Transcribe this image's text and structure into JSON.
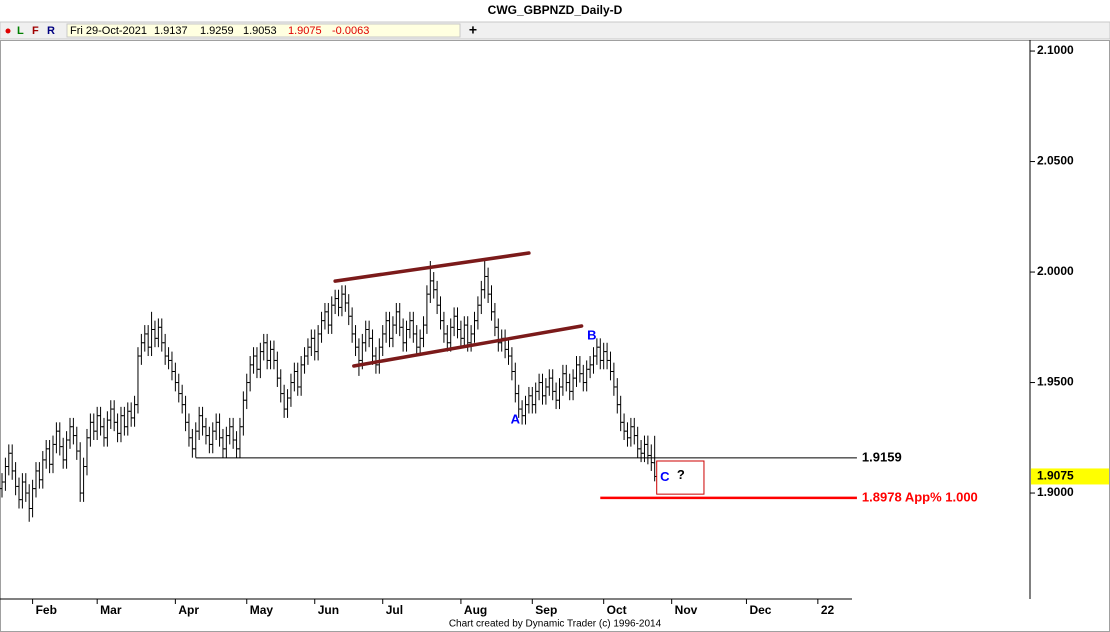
{
  "chart_data": {
    "type": "ohlc",
    "title": "CWG_GBPNZD_Daily-D",
    "toolbar": [
      "L",
      "F",
      "R"
    ],
    "header": {
      "date": "Fri 29-Oct-2021",
      "open": 1.9137,
      "high": 1.9259,
      "low": 1.9053,
      "close": 1.9075,
      "change": -0.0063
    },
    "footer": "Chart created by Dynamic Trader  (c)  1996-2014",
    "color": "#000000",
    "xlim": [
      0,
      303
    ],
    "ylim": [
      1.8516,
      2.105
    ],
    "xticks": [
      {
        "value": 9,
        "label": "Feb"
      },
      {
        "value": 28,
        "label": "Mar"
      },
      {
        "value": 51,
        "label": "Apr"
      },
      {
        "value": 72,
        "label": "May"
      },
      {
        "value": 92,
        "label": "Jun"
      },
      {
        "value": 112,
        "label": "Jul"
      },
      {
        "value": 135,
        "label": "Aug"
      },
      {
        "value": 156,
        "label": "Sep"
      },
      {
        "value": 177,
        "label": "Oct"
      },
      {
        "value": 197,
        "label": "Nov"
      },
      {
        "value": 219,
        "label": "Dec"
      },
      {
        "value": 240,
        "label": "22"
      }
    ],
    "yticks": [
      {
        "value": 1.9,
        "label": "1.9000"
      },
      {
        "value": 1.95,
        "label": "1.9500"
      },
      {
        "value": 2.0,
        "label": "2.0000"
      },
      {
        "value": 2.05,
        "label": "2.0500"
      },
      {
        "value": 2.1,
        "label": "2.1000"
      }
    ],
    "last_price": 1.9075,
    "last_price_color": "#ffff00",
    "values": [
      [
        1.902,
        1.909,
        1.898,
        1.905
      ],
      [
        1.905,
        1.916,
        1.901,
        1.912
      ],
      [
        1.912,
        1.922,
        1.908,
        1.918
      ],
      [
        1.918,
        1.922,
        1.906,
        1.91
      ],
      [
        1.91,
        1.914,
        1.899,
        1.903
      ],
      [
        1.903,
        1.907,
        1.893,
        1.897
      ],
      [
        1.897,
        1.909,
        1.893,
        1.905
      ],
      [
        1.905,
        1.909,
        1.896,
        1.9
      ],
      [
        1.9,
        1.904,
        1.887,
        1.893
      ],
      [
        1.893,
        1.906,
        1.889,
        1.902
      ],
      [
        1.902,
        1.914,
        1.898,
        1.91
      ],
      [
        1.91,
        1.914,
        1.902,
        1.906
      ],
      [
        1.906,
        1.919,
        1.902,
        1.915
      ],
      [
        1.915,
        1.924,
        1.911,
        1.92
      ],
      [
        1.92,
        1.924,
        1.909,
        1.913
      ],
      [
        1.913,
        1.926,
        1.909,
        1.922
      ],
      [
        1.922,
        1.932,
        1.918,
        1.928
      ],
      [
        1.928,
        1.932,
        1.917,
        1.921
      ],
      [
        1.921,
        1.925,
        1.911,
        1.915
      ],
      [
        1.915,
        1.928,
        1.911,
        1.924
      ],
      [
        1.924,
        1.934,
        1.92,
        1.93
      ],
      [
        1.93,
        1.934,
        1.922,
        1.926
      ],
      [
        1.926,
        1.93,
        1.915,
        1.919
      ],
      [
        1.919,
        1.923,
        1.896,
        1.9
      ],
      [
        1.9,
        1.916,
        1.896,
        1.912
      ],
      [
        1.912,
        1.929,
        1.908,
        1.925
      ],
      [
        1.925,
        1.936,
        1.921,
        1.932
      ],
      [
        1.932,
        1.936,
        1.924,
        1.928
      ],
      [
        1.928,
        1.939,
        1.924,
        1.935
      ],
      [
        1.935,
        1.939,
        1.926,
        1.93
      ],
      [
        1.93,
        1.934,
        1.921,
        1.925
      ],
      [
        1.925,
        1.937,
        1.921,
        1.933
      ],
      [
        1.933,
        1.942,
        1.929,
        1.938
      ],
      [
        1.938,
        1.942,
        1.928,
        1.932
      ],
      [
        1.932,
        1.936,
        1.923,
        1.927
      ],
      [
        1.927,
        1.939,
        1.923,
        1.935
      ],
      [
        1.935,
        1.939,
        1.926,
        1.93
      ],
      [
        1.93,
        1.941,
        1.926,
        1.937
      ],
      [
        1.937,
        1.941,
        1.93,
        1.934
      ],
      [
        1.934,
        1.944,
        1.93,
        1.94
      ],
      [
        1.94,
        1.966,
        1.936,
        1.962
      ],
      [
        1.962,
        1.972,
        1.958,
        1.968
      ],
      [
        1.968,
        1.976,
        1.964,
        1.972
      ],
      [
        1.972,
        1.976,
        1.962,
        1.966
      ],
      [
        1.966,
        1.982,
        1.962,
        1.974
      ],
      [
        1.974,
        1.978,
        1.966,
        1.97
      ],
      [
        1.97,
        1.979,
        1.966,
        1.975
      ],
      [
        1.975,
        1.979,
        1.964,
        1.968
      ],
      [
        1.968,
        1.972,
        1.958,
        1.962
      ],
      [
        1.962,
        1.966,
        1.956,
        1.96
      ],
      [
        1.96,
        1.964,
        1.951,
        1.955
      ],
      [
        1.955,
        1.959,
        1.946,
        1.95
      ],
      [
        1.95,
        1.954,
        1.941,
        1.945
      ],
      [
        1.945,
        1.949,
        1.936,
        1.94
      ],
      [
        1.94,
        1.944,
        1.928,
        1.932
      ],
      [
        1.932,
        1.936,
        1.921,
        1.925
      ],
      [
        1.925,
        1.929,
        1.916,
        1.92
      ],
      [
        1.92,
        1.932,
        1.916,
        1.928
      ],
      [
        1.928,
        1.939,
        1.924,
        1.935
      ],
      [
        1.935,
        1.939,
        1.926,
        1.93
      ],
      [
        1.93,
        1.934,
        1.922,
        1.926
      ],
      [
        1.926,
        1.93,
        1.918,
        1.922
      ],
      [
        1.922,
        1.932,
        1.918,
        1.928
      ],
      [
        1.928,
        1.936,
        1.924,
        1.932
      ],
      [
        1.932,
        1.936,
        1.921,
        1.925
      ],
      [
        1.925,
        1.929,
        1.916,
        1.92
      ],
      [
        1.92,
        1.93,
        1.916,
        1.926
      ],
      [
        1.926,
        1.934,
        1.922,
        1.93
      ],
      [
        1.93,
        1.934,
        1.92,
        1.924
      ],
      [
        1.924,
        1.928,
        1.916,
        1.92
      ],
      [
        1.92,
        1.934,
        1.916,
        1.93
      ],
      [
        1.93,
        1.946,
        1.926,
        1.942
      ],
      [
        1.942,
        1.954,
        1.938,
        1.95
      ],
      [
        1.95,
        1.962,
        1.946,
        1.958
      ],
      [
        1.958,
        1.966,
        1.954,
        1.962
      ],
      [
        1.962,
        1.966,
        1.952,
        1.956
      ],
      [
        1.956,
        1.968,
        1.952,
        1.964
      ],
      [
        1.964,
        1.972,
        1.96,
        1.968
      ],
      [
        1.968,
        1.972,
        1.956,
        1.96
      ],
      [
        1.96,
        1.969,
        1.956,
        1.965
      ],
      [
        1.965,
        1.969,
        1.956,
        1.96
      ],
      [
        1.96,
        1.964,
        1.948,
        1.952
      ],
      [
        1.952,
        1.956,
        1.941,
        1.945
      ],
      [
        1.945,
        1.949,
        1.934,
        1.938
      ],
      [
        1.938,
        1.947,
        1.934,
        1.943
      ],
      [
        1.943,
        1.954,
        1.939,
        1.95
      ],
      [
        1.95,
        1.959,
        1.946,
        1.955
      ],
      [
        1.955,
        1.959,
        1.944,
        1.948
      ],
      [
        1.948,
        1.962,
        1.944,
        1.958
      ],
      [
        1.958,
        1.966,
        1.954,
        1.962
      ],
      [
        1.962,
        1.97,
        1.958,
        1.966
      ],
      [
        1.966,
        1.974,
        1.962,
        1.97
      ],
      [
        1.97,
        1.974,
        1.96,
        1.964
      ],
      [
        1.964,
        1.976,
        1.96,
        1.972
      ],
      [
        1.972,
        1.982,
        1.968,
        1.978
      ],
      [
        1.978,
        1.986,
        1.974,
        1.982
      ],
      [
        1.982,
        1.986,
        1.972,
        1.976
      ],
      [
        1.976,
        1.989,
        1.972,
        1.985
      ],
      [
        1.985,
        1.992,
        1.981,
        1.988
      ],
      [
        1.988,
        1.992,
        1.98,
        1.984
      ],
      [
        1.984,
        1.994,
        1.98,
        1.99
      ],
      [
        1.99,
        1.994,
        1.982,
        1.986
      ],
      [
        1.986,
        1.99,
        1.976,
        1.98
      ],
      [
        1.98,
        1.984,
        1.968,
        1.972
      ],
      [
        1.972,
        1.976,
        1.962,
        1.966
      ],
      [
        1.966,
        1.97,
        1.953,
        1.96
      ],
      [
        1.96,
        1.972,
        1.956,
        1.968
      ],
      [
        1.968,
        1.978,
        1.964,
        1.974
      ],
      [
        1.974,
        1.978,
        1.966,
        1.97
      ],
      [
        1.97,
        1.974,
        1.958,
        1.962
      ],
      [
        1.962,
        1.966,
        1.954,
        1.958
      ],
      [
        1.958,
        1.97,
        1.954,
        1.966
      ],
      [
        1.966,
        1.976,
        1.962,
        1.972
      ],
      [
        1.972,
        1.982,
        1.968,
        1.978
      ],
      [
        1.978,
        1.982,
        1.966,
        1.97
      ],
      [
        1.97,
        1.98,
        1.966,
        1.976
      ],
      [
        1.976,
        1.986,
        1.972,
        1.982
      ],
      [
        1.982,
        1.986,
        1.971,
        1.975
      ],
      [
        1.975,
        1.979,
        1.964,
        1.968
      ],
      [
        1.968,
        1.978,
        1.964,
        1.974
      ],
      [
        1.974,
        1.982,
        1.97,
        1.978
      ],
      [
        1.978,
        1.982,
        1.968,
        1.972
      ],
      [
        1.972,
        1.976,
        1.962,
        1.966
      ],
      [
        1.966,
        1.974,
        1.962,
        1.97
      ],
      [
        1.97,
        1.98,
        1.966,
        1.976
      ],
      [
        1.976,
        1.994,
        1.972,
        1.99
      ],
      [
        1.99,
        2.005,
        1.986,
        1.996
      ],
      [
        1.996,
        2.0,
        1.988,
        1.992
      ],
      [
        1.992,
        1.996,
        1.981,
        1.985
      ],
      [
        1.985,
        1.989,
        1.974,
        1.978
      ],
      [
        1.978,
        1.982,
        1.968,
        1.972
      ],
      [
        1.972,
        1.976,
        1.964,
        1.968
      ],
      [
        1.968,
        1.979,
        1.964,
        1.975
      ],
      [
        1.975,
        1.984,
        1.971,
        1.98
      ],
      [
        1.98,
        1.984,
        1.97,
        1.974
      ],
      [
        1.974,
        1.978,
        1.966,
        1.97
      ],
      [
        1.97,
        1.98,
        1.966,
        1.976
      ],
      [
        1.976,
        1.98,
        1.964,
        1.968
      ],
      [
        1.968,
        1.976,
        1.964,
        1.972
      ],
      [
        1.972,
        1.982,
        1.968,
        1.978
      ],
      [
        1.978,
        1.989,
        1.974,
        1.985
      ],
      [
        1.985,
        1.996,
        1.981,
        1.992
      ],
      [
        1.992,
        2.006,
        1.988,
        1.998
      ],
      [
        1.998,
        2.002,
        1.986,
        1.99
      ],
      [
        1.99,
        1.994,
        1.978,
        1.982
      ],
      [
        1.982,
        1.986,
        1.971,
        1.975
      ],
      [
        1.975,
        1.979,
        1.964,
        1.968
      ],
      [
        1.968,
        1.974,
        1.964,
        1.97
      ],
      [
        1.97,
        1.974,
        1.961,
        1.965
      ],
      [
        1.965,
        1.969,
        1.958,
        1.962
      ],
      [
        1.962,
        1.966,
        1.951,
        1.955
      ],
      [
        1.955,
        1.959,
        1.941,
        1.945
      ],
      [
        1.945,
        1.949,
        1.934,
        1.938
      ],
      [
        1.938,
        1.942,
        1.931,
        1.935
      ],
      [
        1.935,
        1.944,
        1.931,
        1.94
      ],
      [
        1.94,
        1.948,
        1.936,
        1.944
      ],
      [
        1.944,
        1.948,
        1.936,
        1.94
      ],
      [
        1.94,
        1.95,
        1.936,
        1.946
      ],
      [
        1.946,
        1.954,
        1.942,
        1.95
      ],
      [
        1.95,
        1.954,
        1.94,
        1.944
      ],
      [
        1.944,
        1.952,
        1.94,
        1.948
      ],
      [
        1.948,
        1.956,
        1.944,
        1.952
      ],
      [
        1.952,
        1.956,
        1.942,
        1.946
      ],
      [
        1.946,
        1.95,
        1.938,
        1.942
      ],
      [
        1.942,
        1.952,
        1.938,
        1.948
      ],
      [
        1.948,
        1.958,
        1.944,
        1.954
      ],
      [
        1.954,
        1.958,
        1.946,
        1.95
      ],
      [
        1.95,
        1.954,
        1.942,
        1.946
      ],
      [
        1.946,
        1.956,
        1.942,
        1.952
      ],
      [
        1.952,
        1.962,
        1.948,
        1.958
      ],
      [
        1.958,
        1.962,
        1.95,
        1.954
      ],
      [
        1.954,
        1.958,
        1.946,
        1.95
      ],
      [
        1.95,
        1.96,
        1.946,
        1.956
      ],
      [
        1.956,
        1.962,
        1.952,
        1.958
      ],
      [
        1.958,
        1.966,
        1.954,
        1.962
      ],
      [
        1.962,
        1.97,
        1.958,
        1.966
      ],
      [
        1.966,
        1.97,
        1.956,
        1.96
      ],
      [
        1.96,
        1.968,
        1.956,
        1.964
      ],
      [
        1.964,
        1.968,
        1.956,
        1.96
      ],
      [
        1.96,
        1.964,
        1.951,
        1.955
      ],
      [
        1.955,
        1.959,
        1.944,
        1.948
      ],
      [
        1.948,
        1.952,
        1.936,
        1.94
      ],
      [
        1.94,
        1.944,
        1.928,
        1.932
      ],
      [
        1.932,
        1.936,
        1.924,
        1.928
      ],
      [
        1.928,
        1.932,
        1.921,
        1.925
      ],
      [
        1.925,
        1.934,
        1.921,
        1.93
      ],
      [
        1.93,
        1.934,
        1.922,
        1.926
      ],
      [
        1.926,
        1.93,
        1.916,
        1.92
      ],
      [
        1.92,
        1.924,
        1.914,
        1.918
      ],
      [
        1.918,
        1.926,
        1.914,
        1.922
      ],
      [
        1.922,
        1.926,
        1.913,
        1.917
      ],
      [
        1.917,
        1.922,
        1.91,
        1.9138
      ],
      [
        1.9137,
        1.9259,
        1.9053,
        1.9075
      ]
    ],
    "trendlines": [
      {
        "x": [
          98,
          155
        ],
        "y": [
          1.9959,
          2.0086
        ],
        "color": "#7b1a1a"
      },
      {
        "x": [
          103.5,
          170.5
        ],
        "y": [
          1.9575,
          1.9756
        ],
        "color": "#7b1a1a"
      }
    ],
    "levels": [
      {
        "value": 1.9159,
        "x": [
          57,
          251.5
        ],
        "label": 1.9159,
        "color": "#000000"
      },
      {
        "value": 1.8978,
        "x": [
          176,
          251.5
        ],
        "label": "1.8978 App% 1.000",
        "color": "#ff0000"
      }
    ],
    "waves": [
      {
        "label": "A",
        "x": 151,
        "y": 1.933,
        "color": "#0000ff"
      },
      {
        "label": "B",
        "x": 173.5,
        "y": 1.971,
        "color": "#0000ff"
      },
      {
        "label": "C",
        "x": 195,
        "y": 1.907,
        "color": "#0000ff"
      },
      {
        "label": "?",
        "x": 199.7,
        "y": 1.908,
        "color": "#000000"
      }
    ],
    "box": {
      "x": [
        192.6,
        206.5
      ],
      "y": [
        1.8995,
        1.9145
      ],
      "color": "#cc0000"
    }
  }
}
